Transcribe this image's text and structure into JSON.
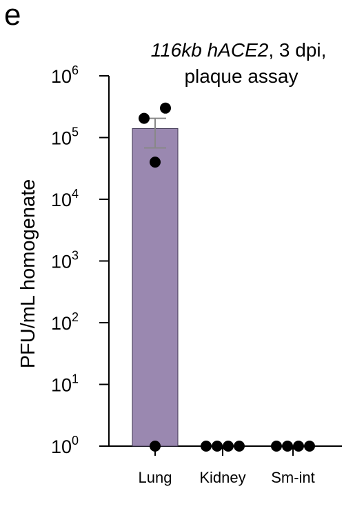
{
  "panel_letter": "e",
  "chart_data": {
    "type": "bar",
    "title_line1_italic": "116kb hACE2",
    "title_line1_rest": ", 3 dpi,",
    "title_line2": "plaque assay",
    "ylabel": "PFU/mL homogenate",
    "xlabel": "",
    "yscale": "log",
    "ylim": [
      1,
      1000000
    ],
    "ytick_exponents": [
      "0",
      "1",
      "2",
      "3",
      "4",
      "5",
      "6"
    ],
    "ytick_base": "10",
    "categories": [
      "Lung",
      "Kidney",
      "Sm-int"
    ],
    "values": [
      140000,
      1,
      1
    ],
    "error_low": [
      68000,
      1,
      1
    ],
    "error_high": [
      205000,
      1,
      1
    ],
    "points": [
      [
        205000,
        300000,
        40000,
        1
      ],
      [
        1,
        1,
        1,
        1
      ],
      [
        1,
        1,
        1,
        1
      ]
    ],
    "bar_color": "#9a88b0",
    "bar_edge_color": "#3d3550",
    "error_color": "#888888",
    "point_color": "#000000"
  }
}
